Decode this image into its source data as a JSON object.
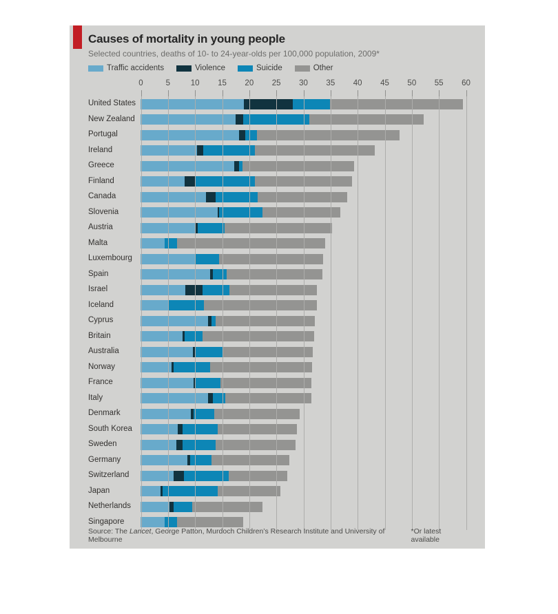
{
  "card": {
    "title": "Causes of mortality in young people",
    "subtitle": "Selected countries, deaths of 10- to 24-year-olds per 100,000 population, 2009*",
    "accent_red": "#c21e25",
    "background": "#d2d2d0",
    "source_prefix": "Source: The ",
    "source_italic": "Lancet",
    "source_suffix": ", George Patton, Murdoch Children’s Research Institute and University of Melbourne",
    "footnote": "*Or latest available"
  },
  "chart_data": {
    "type": "bar",
    "orientation": "horizontal",
    "stacked": true,
    "title": "Causes of mortality in young people",
    "subtitle": "Selected countries, deaths of 10- to 24-year-olds per 100,000 population, 2009*",
    "xlabel": "deaths per 100,000 population",
    "xlim": [
      0,
      60
    ],
    "xticks": [
      0,
      5,
      10,
      15,
      20,
      25,
      30,
      35,
      40,
      45,
      50,
      55,
      60
    ],
    "grid": true,
    "legend_position": "top",
    "categories": [
      "United States",
      "New Zealand",
      "Portugal",
      "Ireland",
      "Greece",
      "Finland",
      "Canada",
      "Slovenia",
      "Austria",
      "Malta",
      "Luxembourg",
      "Spain",
      "Israel",
      "Iceland",
      "Cyprus",
      "Britain",
      "Australia",
      "Norway",
      "France",
      "Italy",
      "Denmark",
      "South Korea",
      "Sweden",
      "Germany",
      "Switzerland",
      "Japan",
      "Netherlands",
      "Singapore"
    ],
    "series": [
      {
        "name": "Traffic accidents",
        "color": "#68aacb",
        "values": [
          19.1,
          17.6,
          18.2,
          10.4,
          17.3,
          8.1,
          12.1,
          14.2,
          10.2,
          4.5,
          10.2,
          12.8,
          8.2,
          5.1,
          12.5,
          7.7,
          9.6,
          5.7,
          9.8,
          12.4,
          9.3,
          6.9,
          6.6,
          8.7,
          6.1,
          3.7,
          5.3,
          4.5
        ]
      },
      {
        "name": "Violence",
        "color": "#11333f",
        "values": [
          9.0,
          1.3,
          1.1,
          1.2,
          0.9,
          1.9,
          1.8,
          0.3,
          0.3,
          0,
          0,
          0.6,
          3.2,
          0,
          0.6,
          0.5,
          0.5,
          0.4,
          0.4,
          0.9,
          0.5,
          0.8,
          1.1,
          0.5,
          1.9,
          0.4,
          0.8,
          0
        ]
      },
      {
        "name": "Suicide",
        "color": "#0d86b6",
        "values": [
          6.8,
          12.3,
          2.2,
          9.5,
          0.6,
          11.1,
          7.7,
          8.0,
          5.0,
          2.2,
          4.3,
          2.5,
          5.0,
          6.6,
          0.8,
          3.2,
          5.2,
          6.8,
          4.5,
          2.3,
          3.8,
          6.5,
          6.2,
          3.9,
          8.3,
          10.2,
          3.4,
          2.2
        ]
      },
      {
        "name": "Other",
        "color": "#949492",
        "values": [
          24.6,
          21.1,
          26.3,
          22.1,
          20.6,
          17.9,
          16.5,
          14.4,
          19.8,
          27.4,
          19.2,
          17.6,
          16.2,
          20.8,
          18.3,
          20.7,
          16.5,
          18.8,
          16.8,
          15.9,
          15.8,
          14.7,
          14.7,
          14.4,
          10.8,
          11.5,
          13.0,
          12.3
        ]
      }
    ],
    "totals": [
      59.5,
      52.3,
      47.8,
      43.2,
      39.4,
      39.0,
      38.1,
      36.9,
      35.3,
      34.1,
      33.7,
      33.5,
      32.6,
      32.5,
      32.2,
      32.1,
      31.8,
      31.7,
      31.5,
      31.5,
      29.4,
      28.9,
      28.6,
      27.5,
      27.1,
      25.8,
      22.5,
      19.0
    ]
  }
}
